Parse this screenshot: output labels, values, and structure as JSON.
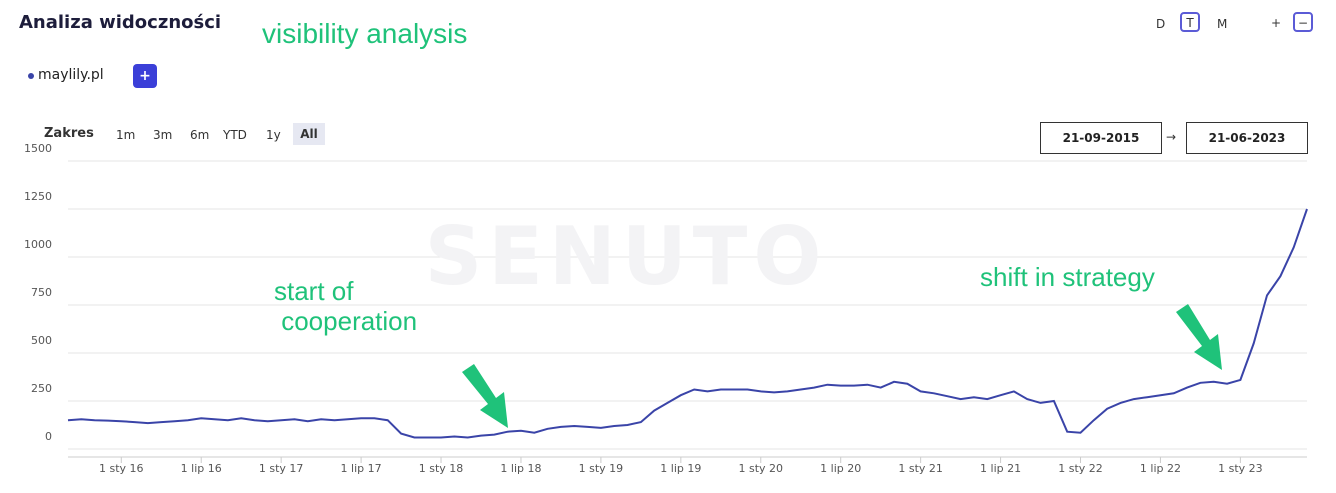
{
  "header": {
    "title": "Analiza widoczności",
    "annotation": "visibility analysis"
  },
  "granularity": [
    "D",
    "T",
    "M"
  ],
  "zoom": [
    "+",
    "−"
  ],
  "add_button": "+",
  "range": {
    "label": "Zakres",
    "options": [
      "1m",
      "3m",
      "6m",
      "YTD",
      "1y",
      "All"
    ]
  },
  "date_from": "21-09-2015",
  "date_arrow": "→",
  "date_to": "21-06-2023",
  "chart_data": {
    "type": "line",
    "watermark": "SENUTO",
    "x": [
      "2015-09",
      "2015-10",
      "2015-11",
      "2015-12",
      "2016-01",
      "2016-02",
      "2016-03",
      "2016-04",
      "2016-05",
      "2016-06",
      "2016-07",
      "2016-08",
      "2016-09",
      "2016-10",
      "2016-11",
      "2016-12",
      "2017-01",
      "2017-02",
      "2017-03",
      "2017-04",
      "2017-05",
      "2017-06",
      "2017-07",
      "2017-08",
      "2017-09",
      "2017-10",
      "2017-11",
      "2017-12",
      "2018-01",
      "2018-02",
      "2018-03",
      "2018-04",
      "2018-05",
      "2018-06",
      "2018-07",
      "2018-08",
      "2018-09",
      "2018-10",
      "2018-11",
      "2018-12",
      "2019-01",
      "2019-02",
      "2019-03",
      "2019-04",
      "2019-05",
      "2019-06",
      "2019-07",
      "2019-08",
      "2019-09",
      "2019-10",
      "2019-11",
      "2019-12",
      "2020-01",
      "2020-02",
      "2020-03",
      "2020-04",
      "2020-05",
      "2020-06",
      "2020-07",
      "2020-08",
      "2020-09",
      "2020-10",
      "2020-11",
      "2020-12",
      "2021-01",
      "2021-02",
      "2021-03",
      "2021-04",
      "2021-05",
      "2021-06",
      "2021-07",
      "2021-08",
      "2021-09",
      "2021-10",
      "2021-11",
      "2021-12",
      "2022-01",
      "2022-02",
      "2022-03",
      "2022-04",
      "2022-05",
      "2022-06",
      "2022-07",
      "2022-08",
      "2022-09",
      "2022-10",
      "2022-11",
      "2022-12",
      "2023-01",
      "2023-02",
      "2023-03",
      "2023-04",
      "2023-05",
      "2023-06"
    ],
    "series": [
      {
        "name": "maylily.pl",
        "color": "#3a44a8",
        "values": [
          150,
          155,
          150,
          148,
          145,
          140,
          135,
          140,
          145,
          150,
          160,
          155,
          150,
          160,
          150,
          145,
          150,
          155,
          145,
          155,
          150,
          155,
          160,
          160,
          150,
          80,
          60,
          60,
          60,
          65,
          60,
          70,
          75,
          90,
          95,
          85,
          105,
          115,
          120,
          115,
          110,
          120,
          125,
          140,
          200,
          240,
          280,
          310,
          300,
          310,
          310,
          310,
          300,
          295,
          300,
          310,
          320,
          335,
          330,
          330,
          335,
          320,
          350,
          340,
          300,
          290,
          275,
          260,
          270,
          260,
          280,
          300,
          260,
          240,
          250,
          90,
          85,
          150,
          210,
          240,
          260,
          270,
          280,
          290,
          320,
          345,
          350,
          340,
          360,
          550,
          800,
          900,
          1050,
          1250
        ]
      }
    ],
    "xlim": [
      "2015-09",
      "2023-06"
    ],
    "xticks": [
      {
        "value": "2016-01",
        "label": "1 sty 16"
      },
      {
        "value": "2016-07",
        "label": "1 lip 16"
      },
      {
        "value": "2017-01",
        "label": "1 sty 17"
      },
      {
        "value": "2017-07",
        "label": "1 lip 17"
      },
      {
        "value": "2018-01",
        "label": "1 sty 18"
      },
      {
        "value": "2018-07",
        "label": "1 lip 18"
      },
      {
        "value": "2019-01",
        "label": "1 sty 19"
      },
      {
        "value": "2019-07",
        "label": "1 lip 19"
      },
      {
        "value": "2020-01",
        "label": "1 sty 20"
      },
      {
        "value": "2020-07",
        "label": "1 lip 20"
      },
      {
        "value": "2021-01",
        "label": "1 sty 21"
      },
      {
        "value": "2021-07",
        "label": "1 lip 21"
      },
      {
        "value": "2022-01",
        "label": "1 sty 22"
      },
      {
        "value": "2022-07",
        "label": "1 lip 22"
      },
      {
        "value": "2023-01",
        "label": "1 sty 23"
      }
    ],
    "ylim": [
      0,
      1500
    ],
    "yticks": [
      0,
      250,
      500,
      750,
      1000,
      1250,
      1500
    ],
    "grid": true,
    "annotations": [
      "start of cooperation",
      "shift in strategy"
    ]
  }
}
